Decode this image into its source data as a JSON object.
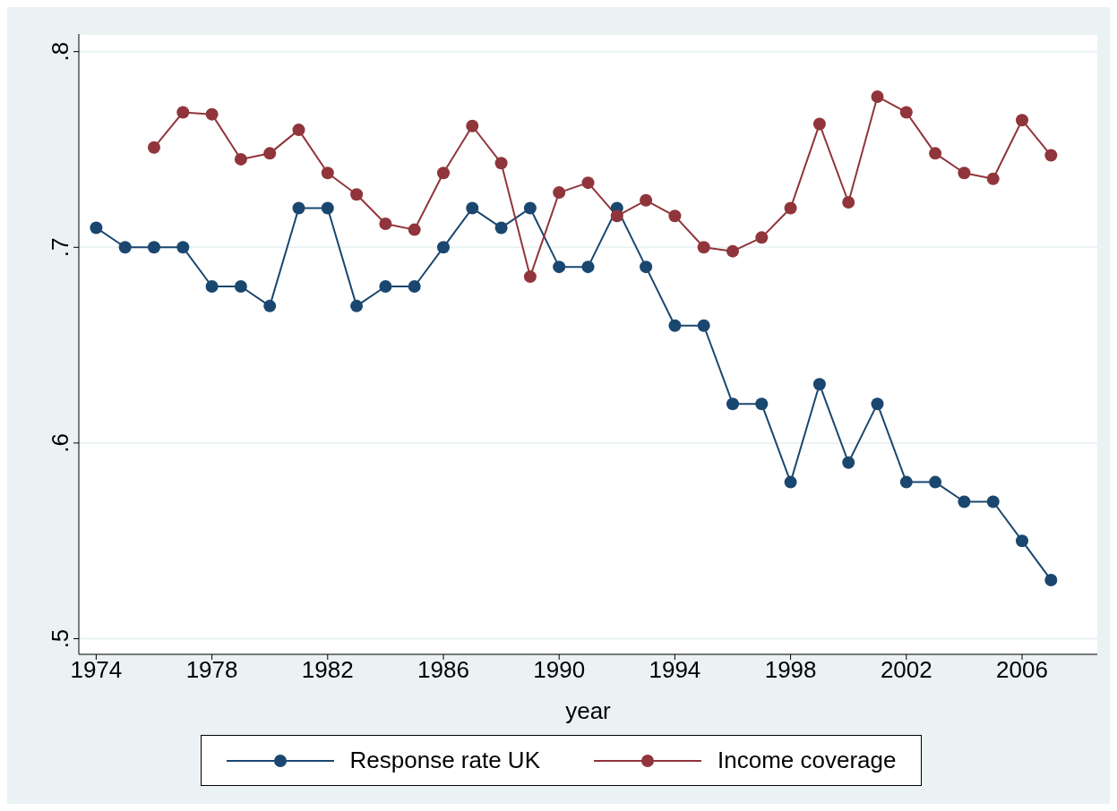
{
  "chart_data": {
    "type": "line",
    "xlabel": "year",
    "x": [
      1974,
      1975,
      1976,
      1977,
      1978,
      1979,
      1980,
      1981,
      1982,
      1983,
      1984,
      1985,
      1986,
      1987,
      1988,
      1989,
      1990,
      1991,
      1992,
      1993,
      1994,
      1995,
      1996,
      1997,
      1998,
      1999,
      2000,
      2001,
      2002,
      2003,
      2004,
      2005,
      2006,
      2007
    ],
    "series": [
      {
        "name": "Response rate UK",
        "color": "#1a476f",
        "values": [
          0.71,
          0.7,
          0.7,
          0.7,
          0.68,
          0.68,
          0.67,
          0.72,
          0.72,
          0.67,
          0.68,
          0.68,
          0.7,
          0.72,
          0.71,
          0.72,
          0.69,
          0.69,
          0.72,
          0.69,
          0.66,
          0.66,
          0.62,
          0.62,
          0.58,
          0.63,
          0.59,
          0.62,
          0.58,
          0.58,
          0.57,
          0.57,
          0.55,
          0.53
        ]
      },
      {
        "name": "Income coverage",
        "color": "#90353b",
        "values": [
          null,
          null,
          0.751,
          0.769,
          0.768,
          0.745,
          0.748,
          0.76,
          0.738,
          0.727,
          0.712,
          0.709,
          0.738,
          0.762,
          0.743,
          0.685,
          0.728,
          0.733,
          0.716,
          0.724,
          0.716,
          0.7,
          0.698,
          0.705,
          0.72,
          0.763,
          0.723,
          0.777,
          0.769,
          0.748,
          0.738,
          0.735,
          0.765,
          0.747
        ]
      }
    ],
    "xlim": [
      1973.4,
      2008.6
    ],
    "xticks": [
      1974,
      1978,
      1982,
      1986,
      1990,
      1994,
      1998,
      2002,
      2006
    ],
    "ylim": [
      0.492,
      0.809
    ],
    "yticks": [
      {
        "value": 0.5,
        "label": ".5"
      },
      {
        "value": 0.6,
        "label": ".6"
      },
      {
        "value": 0.7,
        "label": ".7"
      },
      {
        "value": 0.8,
        "label": ".8"
      }
    ],
    "grid": "y",
    "legend": "bottom",
    "marker": "circle",
    "line_style": "solid"
  }
}
